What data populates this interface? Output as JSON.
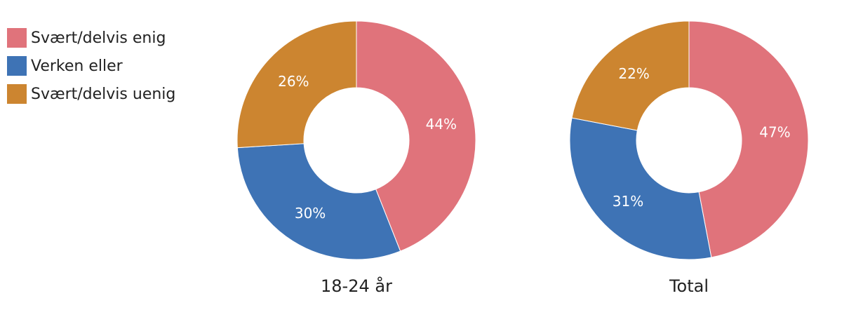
{
  "chart_data": [
    {
      "type": "pie",
      "title": "18-24 år",
      "categories": [
        "Svært/delvis enig",
        "Verken eller",
        "Svært/delvis uenig"
      ],
      "values": [
        44,
        30,
        26
      ],
      "labels": [
        "44%",
        "30%",
        "26%"
      ],
      "colors": [
        "#e0737b",
        "#3e73b5",
        "#cc8530"
      ]
    },
    {
      "type": "pie",
      "title": "Total",
      "categories": [
        "Svært/delvis enig",
        "Verken eller",
        "Svært/delvis uenig"
      ],
      "values": [
        47,
        31,
        22
      ],
      "labels": [
        "47%",
        "31%",
        "22%"
      ],
      "colors": [
        "#e0737b",
        "#3e73b5",
        "#cc8530"
      ]
    }
  ],
  "legend": {
    "placement": "top-left",
    "items": [
      {
        "label": "Svært/delvis enig",
        "color": "#e0737b"
      },
      {
        "label": "Verken eller",
        "color": "#3e73b5"
      },
      {
        "label": "Svært/delvis uenig",
        "color": "#cc8530"
      }
    ]
  }
}
